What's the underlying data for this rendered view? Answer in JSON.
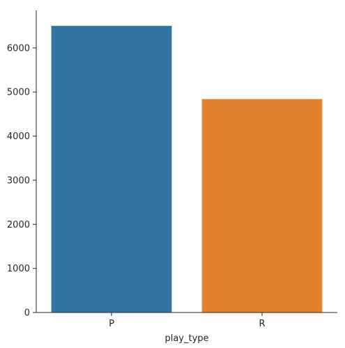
{
  "chart_data": {
    "type": "bar",
    "categories": [
      "P",
      "R"
    ],
    "values": [
      6500,
      4840
    ],
    "colors": [
      "#3274a1",
      "#e1812c"
    ],
    "title": "",
    "xlabel": "play_type",
    "ylabel": "",
    "ylim": [
      0,
      6850
    ],
    "yticks": [
      0,
      1000,
      2000,
      3000,
      4000,
      5000,
      6000
    ],
    "grid": false,
    "legend": "none"
  }
}
